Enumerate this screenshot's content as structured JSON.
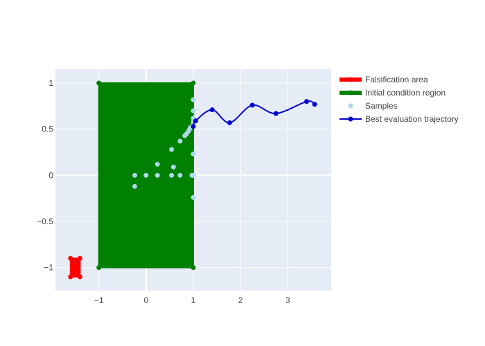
{
  "chart_data": {
    "type": "scatter",
    "title": "",
    "xlabel": "",
    "ylabel": "",
    "xlim": [
      -1.92,
      3.92
    ],
    "ylim": [
      -1.25,
      1.15
    ],
    "grid": true,
    "legend_position": "top-right outside",
    "x_ticks": [
      -1,
      0,
      1,
      2,
      3
    ],
    "y_ticks": [
      -1,
      -0.5,
      0,
      0.5,
      1
    ],
    "x_tick_labels": [
      "−1",
      "0",
      "1",
      "2",
      "3"
    ],
    "y_tick_labels": [
      "−1",
      "−0.5",
      "0",
      "0.5",
      "1"
    ],
    "colors": {
      "plot_bg": "#E5ECF6",
      "grid": "#ffffff",
      "falsification": "#ff0000",
      "initial": "#008000",
      "samples": "#add8e6",
      "trajectory": "#0000cd"
    },
    "legend": [
      {
        "key": "falsification",
        "label": "Falsification area"
      },
      {
        "key": "initial",
        "label": "Initial condition region"
      },
      {
        "key": "samples",
        "label": "Samples"
      },
      {
        "key": "trajectory",
        "label": "Best evaluation trajectory"
      }
    ],
    "series": [
      {
        "key": "falsification",
        "mode": "filled-region",
        "x": [
          -1.6,
          -1.4,
          -1.4,
          -1.6,
          -1.6
        ],
        "y": [
          -1.1,
          -1.1,
          -0.9,
          -0.9,
          -1.1
        ]
      },
      {
        "key": "initial",
        "mode": "filled-region",
        "x": [
          -1,
          1,
          1,
          -1,
          -1
        ],
        "y": [
          -1,
          -1,
          1,
          1,
          -1
        ]
      },
      {
        "key": "samples",
        "mode": "markers",
        "x": [
          -0.24,
          -0.24,
          0.0,
          0.24,
          0.24,
          0.54,
          0.54,
          0.58,
          0.72,
          0.72,
          0.82,
          0.86,
          0.9,
          0.92,
          0.94,
          0.97,
          0.99,
          1.0,
          1.0,
          1.0,
          1.0,
          1.0,
          1.0,
          1.0,
          1.0,
          1.0
        ],
        "y": [
          -0.12,
          0.0,
          0.0,
          0.0,
          0.12,
          0.0,
          0.28,
          0.09,
          0.0,
          0.37,
          0.43,
          0.45,
          0.48,
          0.5,
          0.52,
          0.0,
          0.0,
          -0.24,
          0.0,
          0.23,
          0.55,
          0.58,
          0.62,
          0.7,
          0.82,
          0.0
        ]
      },
      {
        "key": "trajectory",
        "mode": "lines+markers",
        "x": [
          1.0,
          1.05,
          1.4,
          1.77,
          2.25,
          2.75,
          3.4,
          3.57
        ],
        "y": [
          0.53,
          0.59,
          0.71,
          0.57,
          0.76,
          0.67,
          0.8,
          0.77
        ]
      }
    ]
  }
}
